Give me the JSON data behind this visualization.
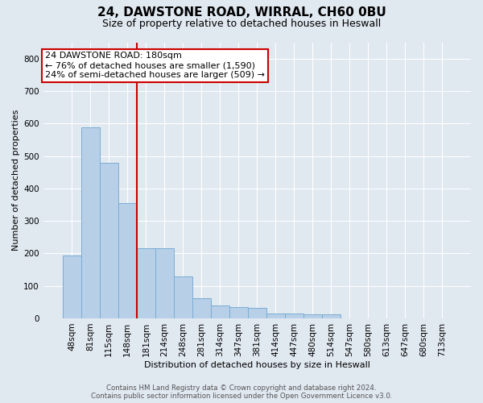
{
  "title_line1": "24, DAWSTONE ROAD, WIRRAL, CH60 0BU",
  "title_line2": "Size of property relative to detached houses in Heswall",
  "xlabel": "Distribution of detached houses by size in Heswall",
  "ylabel": "Number of detached properties",
  "categories": [
    "48sqm",
    "81sqm",
    "115sqm",
    "148sqm",
    "181sqm",
    "214sqm",
    "248sqm",
    "281sqm",
    "314sqm",
    "347sqm",
    "381sqm",
    "414sqm",
    "447sqm",
    "480sqm",
    "514sqm",
    "547sqm",
    "580sqm",
    "613sqm",
    "647sqm",
    "680sqm",
    "713sqm"
  ],
  "values": [
    193,
    588,
    480,
    355,
    215,
    215,
    130,
    63,
    40,
    35,
    32,
    16,
    15,
    12,
    12,
    0,
    0,
    0,
    0,
    0,
    0
  ],
  "bar_color": "#b8cfe8",
  "bar_edge_color": "#7aadd4",
  "background_color": "#e0e8f0",
  "gridcolor": "#ffffff",
  "vline_color": "#cc0000",
  "vline_x_index": 4,
  "annotation_text": "24 DAWSTONE ROAD: 180sqm\n← 76% of detached houses are smaller (1,590)\n24% of semi-detached houses are larger (509) →",
  "annotation_box_facecolor": "#ffffff",
  "annotation_box_edgecolor": "#cc0000",
  "footer_line1": "Contains HM Land Registry data © Crown copyright and database right 2024.",
  "footer_line2": "Contains public sector information licensed under the Open Government Licence v3.0.",
  "ylim": [
    0,
    850
  ],
  "yticks": [
    0,
    100,
    200,
    300,
    400,
    500,
    600,
    700,
    800
  ],
  "title1_fontsize": 11,
  "title2_fontsize": 9,
  "ylabel_fontsize": 8,
  "xlabel_fontsize": 8,
  "tick_fontsize": 7.5,
  "annotation_fontsize": 8
}
